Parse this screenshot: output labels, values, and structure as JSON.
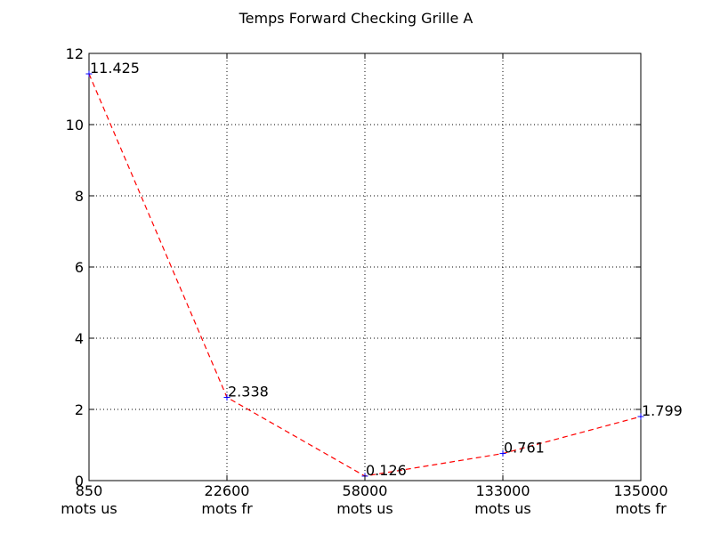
{
  "chart_data": {
    "type": "line",
    "title": "Temps Forward Checking Grille A",
    "xlabel": "",
    "ylabel": "",
    "categories": [
      [
        "850",
        "mots us"
      ],
      [
        "22600",
        "mots fr"
      ],
      [
        "58000",
        "mots us"
      ],
      [
        "133000",
        "mots us"
      ],
      [
        "135000",
        "mots fr"
      ]
    ],
    "series": [
      {
        "values": [
          11.425,
          2.338,
          0.126,
          0.761,
          1.799
        ],
        "labels": [
          "11.425",
          "2.338",
          "0.126",
          "0.761",
          "1.799"
        ],
        "line_color": "#ff0000",
        "line_style": "dashed",
        "marker": "plus",
        "marker_color": "#0000ff"
      }
    ],
    "ylim": [
      0,
      12
    ],
    "yticks": [
      0,
      2,
      4,
      6,
      8,
      10,
      12
    ],
    "grid": true
  }
}
